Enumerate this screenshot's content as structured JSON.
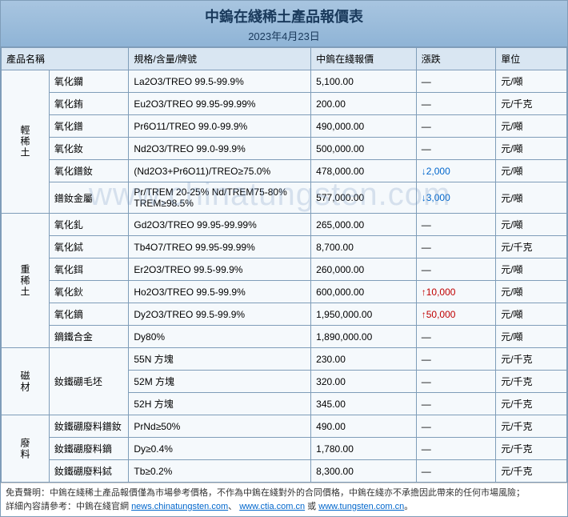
{
  "header": {
    "title": "中鎢在綫稀土產品報價表",
    "date": "2023年4月23日"
  },
  "columns": {
    "name": "產品名稱",
    "spec": "規格/含量/牌號",
    "price": "中鎢在綫報價",
    "change": "漲跌",
    "unit": "單位"
  },
  "groups": [
    {
      "label": "輕稀土",
      "rows": [
        {
          "name": "氧化鑭",
          "spec": "La2O3/TREO 99.5-99.9%",
          "price": "5,100.00",
          "change": "—",
          "unit": "元/噸"
        },
        {
          "name": "氧化銪",
          "spec": "Eu2O3/TREO 99.95-99.99%",
          "price": "200.00",
          "change": "—",
          "unit": "元/千克"
        },
        {
          "name": "氧化鐠",
          "spec": "Pr6O11/TREO 99.0-99.9%",
          "price": "490,000.00",
          "change": "—",
          "unit": "元/噸"
        },
        {
          "name": "氧化釹",
          "spec": "Nd2O3/TREO 99.0-99.9%",
          "price": "500,000.00",
          "change": "—",
          "unit": "元/噸"
        },
        {
          "name": "氧化鐠釹",
          "spec": "(Nd2O3+Pr6O11)/TREO≥75.0%",
          "price": "478,000.00",
          "change": "↓2,000",
          "change_class": "down",
          "unit": "元/噸"
        },
        {
          "name": "鐠釹金屬",
          "spec": "Pr/TREM 20-25% Nd/TREM75-80% TREM≥98.5%",
          "price": "577,000.00",
          "change": "↓3,000",
          "change_class": "down",
          "unit": "元/噸"
        }
      ]
    },
    {
      "label": "重稀土",
      "rows": [
        {
          "name": "氧化釓",
          "spec": "Gd2O3/TREO 99.95-99.99%",
          "price": "265,000.00",
          "change": "—",
          "unit": "元/噸"
        },
        {
          "name": "氧化鋱",
          "spec": "Tb4O7/TREO 99.95-99.99%",
          "price": "8,700.00",
          "change": "—",
          "unit": "元/千克"
        },
        {
          "name": "氧化鉺",
          "spec": "Er2O3/TREO 99.5-99.9%",
          "price": "260,000.00",
          "change": "—",
          "unit": "元/噸"
        },
        {
          "name": "氧化鈥",
          "spec": "Ho2O3/TREO 99.5-99.9%",
          "price": "600,000.00",
          "change": "↑10,000",
          "change_class": "up",
          "unit": "元/噸"
        },
        {
          "name": "氧化鏑",
          "spec": "Dy2O3/TREO 99.5-99.9%",
          "price": "1,950,000.00",
          "change": "↑50,000",
          "change_class": "up",
          "unit": "元/噸"
        },
        {
          "name": "鏑鐵合金",
          "spec": "Dy80%",
          "price": "1,890,000.00",
          "change": "—",
          "unit": "元/噸"
        }
      ]
    },
    {
      "label": "磁材",
      "rows": [
        {
          "name": "釹鐵硼毛坯",
          "rowspan": 3,
          "spec": "55N 方塊",
          "price": "230.00",
          "change": "—",
          "unit": "元/千克"
        },
        {
          "spec": "52M 方塊",
          "price": "320.00",
          "change": "—",
          "unit": "元/千克"
        },
        {
          "spec": "52H 方塊",
          "price": "345.00",
          "change": "—",
          "unit": "元/千克"
        }
      ]
    },
    {
      "label": "廢料",
      "rows": [
        {
          "name": "釹鐵硼廢料鐠釹",
          "spec": "PrNd≥50%",
          "price": "490.00",
          "change": "—",
          "unit": "元/千克"
        },
        {
          "name": "釹鐵硼廢料鏑",
          "spec": "Dy≥0.4%",
          "price": "1,780.00",
          "change": "—",
          "unit": "元/千克"
        },
        {
          "name": "釹鐵硼廢料鋱",
          "spec": "Tb≥0.2%",
          "price": "8,300.00",
          "change": "—",
          "unit": "元/千克"
        }
      ]
    }
  ],
  "footer": {
    "disclaimer": "免責聲明：中鎢在綫稀土產品報價僅為市場參考價格，不作為中鎢在綫對外的合同價格，中鎢在綫亦不承擔因此帶來的任何市場風險；",
    "detail_label": "詳細內容請參考：中鎢在綫官網 ",
    "link1": "news.chinatungsten.com",
    "sep1": "、",
    "link2": "www.ctia.com.cn",
    "sep2": " 或 ",
    "link3": "www.tungsten.com.cn",
    "tail": "。"
  },
  "watermark": "www.chinatungsten.com"
}
